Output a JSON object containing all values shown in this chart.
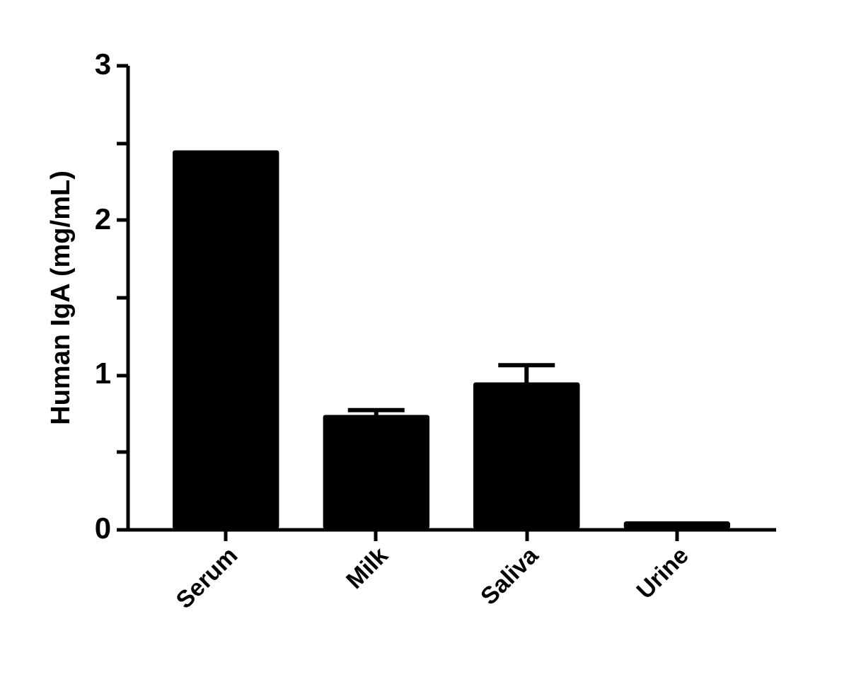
{
  "chart_data": {
    "type": "bar",
    "ylabel": "Human IgA (mg/mL)",
    "categories": [
      "Serum",
      "Milk",
      "Saliva",
      "Urine"
    ],
    "values": [
      2.45,
      0.74,
      0.95,
      0.05
    ],
    "errors": [
      null,
      0.03,
      0.11,
      null
    ],
    "color": "#000000",
    "ylim": [
      0,
      3
    ],
    "yticks": [
      0,
      {
        "value": 0.5,
        "label": null
      },
      1,
      {
        "value": 1.5,
        "label": null
      },
      2,
      {
        "value": 2.5,
        "label": null
      },
      3
    ],
    "grid": false
  }
}
